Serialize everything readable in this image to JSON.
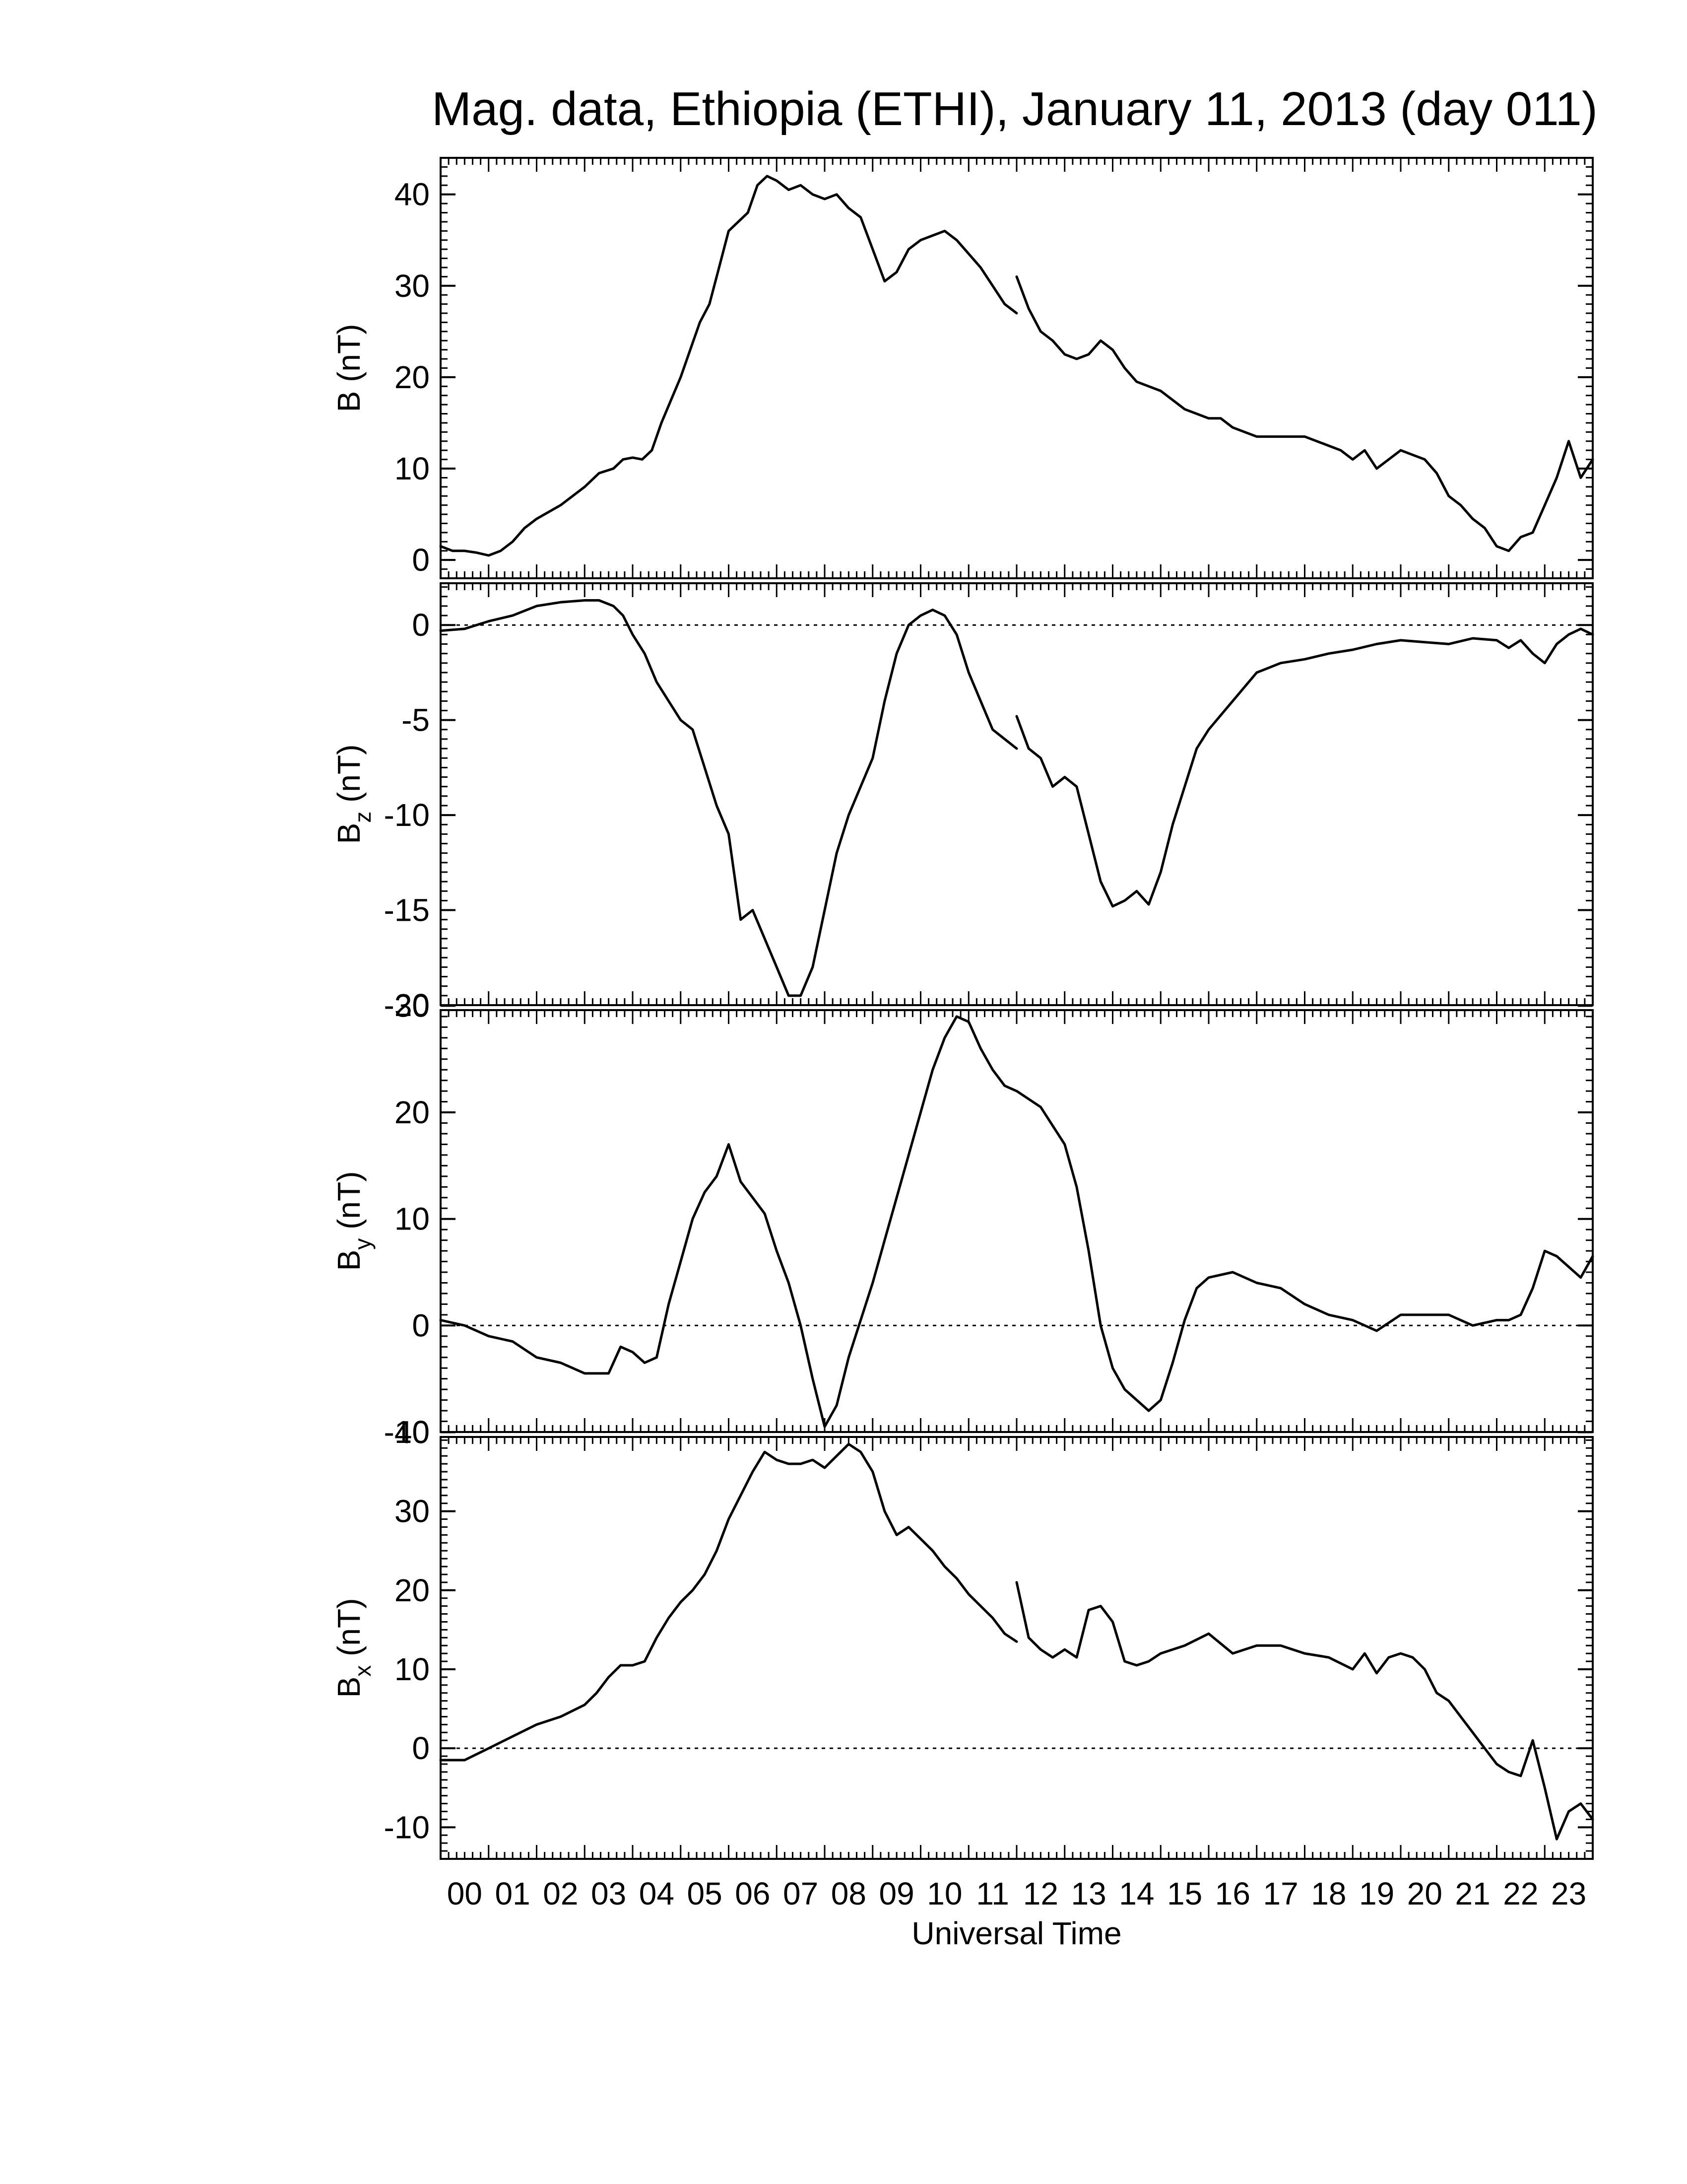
{
  "title": "Mag. data, Ethiopia (ETHI), January 11, 2013 (day 011)",
  "colors": {
    "line": "#000000",
    "background": "#ffffff",
    "zero_line": "#000000"
  },
  "chart_data": [
    {
      "type": "line",
      "title": "Mag. data, Ethiopia (ETHI), January 11, 2013 (day 011)",
      "ylabel": {
        "main": "B",
        "sub": "",
        "unit": "(nT)"
      },
      "xlabel": "",
      "xlim": [
        0,
        24
      ],
      "ylim": [
        -2,
        44
      ],
      "yticks": [
        0,
        10,
        20,
        30,
        40
      ],
      "yticklabels": [
        "0",
        "10",
        "20",
        "30",
        "40"
      ],
      "zero_line": false,
      "series": [
        {
          "x": [
            0,
            0.25,
            0.5,
            0.75,
            1.0,
            1.25,
            1.5,
            1.75,
            2.0,
            2.5,
            3.0,
            3.3,
            3.6,
            3.8,
            4.0,
            4.2,
            4.4,
            4.6,
            4.8,
            5.0,
            5.2,
            5.4,
            5.6,
            5.8,
            6.0,
            6.2,
            6.4,
            6.6,
            6.8,
            7.0,
            7.25,
            7.5,
            7.75,
            8.0,
            8.25,
            8.5,
            8.75,
            9.0,
            9.25,
            9.5,
            9.75,
            10.0,
            10.25,
            10.5,
            10.75,
            11.0,
            11.25,
            11.5,
            11.75,
            12.0
          ],
          "y": [
            1.5,
            1.0,
            1.0,
            0.8,
            0.5,
            1.0,
            2.0,
            3.5,
            4.5,
            6.0,
            8.0,
            9.5,
            10.0,
            11.0,
            11.2,
            11.0,
            12.0,
            15.0,
            17.5,
            20.0,
            23.0,
            26.0,
            28.0,
            32.0,
            36.0,
            37.0,
            38.0,
            41.0,
            42.0,
            41.5,
            40.5,
            41.0,
            40.0,
            39.5,
            40.0,
            38.5,
            37.5,
            34.0,
            30.5,
            31.5,
            34.0,
            35.0,
            35.5,
            36.0,
            35.0,
            33.5,
            32.0,
            30.0,
            28.0,
            27.0
          ]
        },
        {
          "x": [
            12.0,
            12.25,
            12.5,
            12.75,
            13.0,
            13.25,
            13.5,
            13.75,
            14.0,
            14.25,
            14.5,
            14.75,
            15.0,
            15.5,
            16.0,
            16.25,
            16.5,
            16.75,
            17.0,
            17.5,
            18.0,
            18.5,
            18.75,
            19.0,
            19.25,
            19.5,
            19.75,
            20.0,
            20.25,
            20.5,
            20.75,
            21.0,
            21.25,
            21.5,
            21.75,
            22.0,
            22.25,
            22.5,
            22.75,
            23.0,
            23.25,
            23.5,
            23.75,
            24.0
          ],
          "y": [
            31.0,
            27.5,
            25.0,
            24.0,
            22.5,
            22.0,
            22.5,
            24.0,
            23.0,
            21.0,
            19.5,
            19.0,
            18.5,
            16.5,
            15.5,
            15.5,
            14.5,
            14.0,
            13.5,
            13.5,
            13.5,
            12.5,
            12.0,
            11.0,
            12.0,
            10.0,
            11.0,
            12.0,
            11.5,
            11.0,
            9.5,
            7.0,
            6.0,
            4.5,
            3.5,
            1.5,
            1.0,
            2.5,
            3.0,
            6.0,
            9.0,
            13.0,
            9.0,
            11.0
          ]
        }
      ]
    },
    {
      "type": "line",
      "ylabel": {
        "main": "B",
        "sub": "z",
        "unit": "(nT)"
      },
      "xlabel": "",
      "xlim": [
        0,
        24
      ],
      "ylim": [
        -20,
        2.2
      ],
      "yticks": [
        0,
        -5,
        -10,
        -15,
        -20
      ],
      "yticklabels": [
        "0",
        "-5",
        "-10",
        "-15",
        "-20"
      ],
      "zero_line": true,
      "series": [
        {
          "x": [
            0,
            0.5,
            1.0,
            1.5,
            2.0,
            2.5,
            3.0,
            3.3,
            3.6,
            3.8,
            4.0,
            4.25,
            4.5,
            4.75,
            5.0,
            5.25,
            5.5,
            5.75,
            6.0,
            6.25,
            6.5,
            6.75,
            7.0,
            7.25,
            7.5,
            7.75,
            8.0,
            8.25,
            8.5,
            8.75,
            9.0,
            9.25,
            9.5,
            9.75,
            10.0,
            10.25,
            10.5,
            10.75,
            11.0,
            11.25,
            11.5,
            11.75,
            12.0
          ],
          "y": [
            -0.3,
            -0.2,
            0.2,
            0.5,
            1.0,
            1.2,
            1.3,
            1.3,
            1.0,
            0.5,
            -0.5,
            -1.5,
            -3.0,
            -4.0,
            -5.0,
            -5.5,
            -7.5,
            -9.5,
            -11.0,
            -15.5,
            -15.0,
            -16.5,
            -18.0,
            -19.5,
            -19.5,
            -18.0,
            -15.0,
            -12.0,
            -10.0,
            -8.5,
            -7.0,
            -4.0,
            -1.5,
            0.0,
            0.5,
            0.8,
            0.5,
            -0.5,
            -2.5,
            -4.0,
            -5.5,
            -6.0,
            -6.5
          ]
        },
        {
          "x": [
            12.0,
            12.25,
            12.5,
            12.75,
            13.0,
            13.25,
            13.5,
            13.75,
            14.0,
            14.25,
            14.5,
            14.75,
            15.0,
            15.25,
            15.5,
            15.75,
            16.0,
            16.5,
            17.0,
            17.5,
            18.0,
            18.5,
            19.0,
            19.5,
            20.0,
            20.5,
            21.0,
            21.5,
            22.0,
            22.25,
            22.5,
            22.75,
            23.0,
            23.25,
            23.5,
            23.75,
            24.0
          ],
          "y": [
            -4.8,
            -6.5,
            -7.0,
            -8.5,
            -8.0,
            -8.5,
            -11.0,
            -13.5,
            -14.8,
            -14.5,
            -14.0,
            -14.7,
            -13.0,
            -10.5,
            -8.5,
            -6.5,
            -5.5,
            -4.0,
            -2.5,
            -2.0,
            -1.8,
            -1.5,
            -1.3,
            -1.0,
            -0.8,
            -0.9,
            -1.0,
            -0.7,
            -0.8,
            -1.2,
            -0.8,
            -1.5,
            -2.0,
            -1.0,
            -0.5,
            -0.2,
            -0.5
          ]
        }
      ]
    },
    {
      "type": "line",
      "ylabel": {
        "main": "B",
        "sub": "y",
        "unit": "(nT)"
      },
      "xlabel": "",
      "xlim": [
        0,
        24
      ],
      "ylim": [
        -10,
        29.6
      ],
      "yticks": [
        -10,
        0,
        10,
        20,
        30
      ],
      "yticklabels": [
        "-10",
        "0",
        "10",
        "20",
        "30"
      ],
      "zero_line": true,
      "series": [
        {
          "x": [
            0,
            0.5,
            1.0,
            1.5,
            2.0,
            2.5,
            3.0,
            3.5,
            3.75,
            4.0,
            4.25,
            4.5,
            4.75,
            5.0,
            5.25,
            5.5,
            5.75,
            6.0,
            6.25,
            6.5,
            6.75,
            7.0,
            7.25,
            7.5,
            7.75,
            8.0,
            8.25,
            8.5,
            8.75,
            9.0,
            9.25,
            9.5,
            9.75,
            10.0,
            10.25,
            10.5,
            10.75,
            11.0,
            11.25,
            11.5,
            11.75,
            12.0,
            12.5,
            13.0,
            13.25,
            13.5,
            13.75,
            14.0,
            14.25,
            14.5,
            14.75,
            15.0,
            15.25,
            15.5,
            15.75,
            16.0,
            16.5,
            17.0,
            17.5,
            18.0,
            18.5,
            19.0,
            19.5,
            20.0,
            20.5,
            21.0,
            21.5,
            22.0,
            22.25,
            22.5,
            22.75,
            23.0,
            23.25,
            23.5,
            23.75,
            24.0
          ],
          "y": [
            0.5,
            0.0,
            -1.0,
            -1.5,
            -3.0,
            -3.5,
            -4.5,
            -4.5,
            -2.0,
            -2.5,
            -3.5,
            -3.0,
            2.0,
            6.0,
            10.0,
            12.5,
            14.0,
            17.0,
            13.5,
            12.0,
            10.5,
            7.0,
            4.0,
            0.0,
            -5.0,
            -9.5,
            -7.5,
            -3.0,
            0.5,
            4.0,
            8.0,
            12.0,
            16.0,
            20.0,
            24.0,
            27.0,
            29.0,
            28.5,
            26.0,
            24.0,
            22.5,
            22.0,
            20.5,
            17.0,
            13.0,
            7.0,
            0.0,
            -4.0,
            -6.0,
            -7.0,
            -8.0,
            -7.0,
            -3.5,
            0.5,
            3.5,
            4.5,
            5.0,
            4.0,
            3.5,
            2.0,
            1.0,
            0.5,
            -0.5,
            1.0,
            1.0,
            1.0,
            0.0,
            0.5,
            0.5,
            1.0,
            3.5,
            7.0,
            6.5,
            5.5,
            4.5,
            6.5
          ]
        }
      ]
    },
    {
      "type": "line",
      "ylabel": {
        "main": "B",
        "sub": "x",
        "unit": "(nT)"
      },
      "xlabel": "Universal Time",
      "xlim": [
        0,
        24
      ],
      "ylim": [
        -14,
        39.4
      ],
      "yticks": [
        -10,
        0,
        10,
        20,
        30,
        40
      ],
      "yticklabels": [
        "-10",
        "0",
        "10",
        "20",
        "30",
        "40"
      ],
      "xticks": [
        0.5,
        1.5,
        2.5,
        3.5,
        4.5,
        5.5,
        6.5,
        7.5,
        8.5,
        9.5,
        10.5,
        11.5,
        12.5,
        13.5,
        14.5,
        15.5,
        16.5,
        17.5,
        18.5,
        19.5,
        20.5,
        21.5,
        22.5,
        23.5
      ],
      "xticklabels": [
        "00",
        "01",
        "02",
        "03",
        "04",
        "05",
        "06",
        "07",
        "08",
        "09",
        "10",
        "11",
        "12",
        "13",
        "14",
        "15",
        "16",
        "17",
        "18",
        "19",
        "20",
        "21",
        "22",
        "23"
      ],
      "zero_line": true,
      "series": [
        {
          "x": [
            0,
            0.5,
            1.0,
            1.5,
            2.0,
            2.5,
            3.0,
            3.25,
            3.5,
            3.75,
            4.0,
            4.25,
            4.5,
            4.75,
            5.0,
            5.25,
            5.5,
            5.75,
            6.0,
            6.25,
            6.5,
            6.75,
            7.0,
            7.25,
            7.5,
            7.75,
            8.0,
            8.25,
            8.5,
            8.75,
            9.0,
            9.25,
            9.5,
            9.75,
            10.0,
            10.25,
            10.5,
            10.75,
            11.0,
            11.25,
            11.5,
            11.75,
            12.0
          ],
          "y": [
            -1.5,
            -1.5,
            0.0,
            1.5,
            3.0,
            4.0,
            5.5,
            7.0,
            9.0,
            10.5,
            10.5,
            11.0,
            14.0,
            16.5,
            18.5,
            20.0,
            22.0,
            25.0,
            29.0,
            32.0,
            35.0,
            37.5,
            36.5,
            36.0,
            36.0,
            36.5,
            35.5,
            37.0,
            38.5,
            37.5,
            35.0,
            30.0,
            27.0,
            28.0,
            26.5,
            25.0,
            23.0,
            21.5,
            19.5,
            18.0,
            16.5,
            14.5,
            13.5
          ]
        },
        {
          "x": [
            12.0,
            12.25,
            12.5,
            12.75,
            13.0,
            13.25,
            13.5,
            13.75,
            14.0,
            14.25,
            14.5,
            14.75,
            15.0,
            15.5,
            16.0,
            16.5,
            17.0,
            17.5,
            18.0,
            18.5,
            19.0,
            19.25,
            19.5,
            19.75,
            20.0,
            20.25,
            20.5,
            20.75,
            21.0,
            21.25,
            21.5,
            21.75,
            22.0,
            22.25,
            22.5,
            22.75,
            23.0,
            23.25,
            23.5,
            23.75,
            24.0
          ],
          "y": [
            21.0,
            14.0,
            12.5,
            11.5,
            12.5,
            11.5,
            17.5,
            18.0,
            16.0,
            11.0,
            10.5,
            11.0,
            12.0,
            13.0,
            14.5,
            12.0,
            13.0,
            13.0,
            12.0,
            11.5,
            10.0,
            12.0,
            9.5,
            11.5,
            12.0,
            11.5,
            10.0,
            7.0,
            6.0,
            4.0,
            2.0,
            0.0,
            -2.0,
            -3.0,
            -3.5,
            1.0,
            -5.0,
            -11.5,
            -8.0,
            -7.0,
            -9.0
          ]
        }
      ]
    }
  ]
}
